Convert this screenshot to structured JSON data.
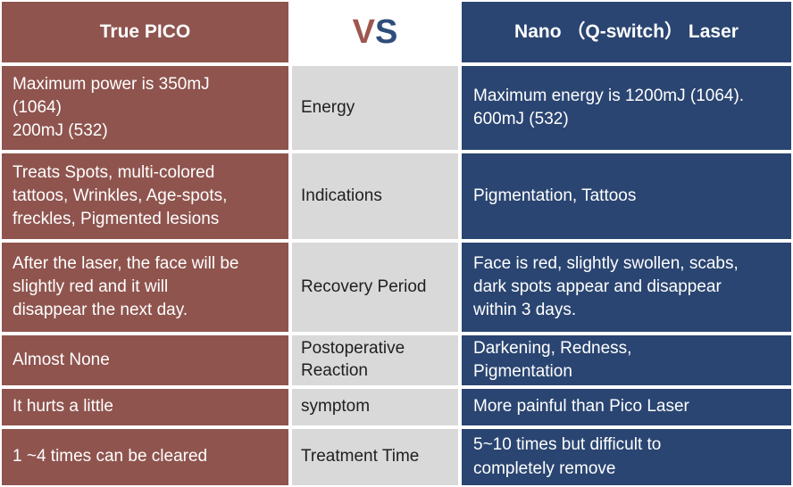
{
  "table": {
    "header": {
      "pico_title": "True PICO",
      "vs_v": "V",
      "vs_s": "S",
      "nano_title": "Nano （Q-switch） Laser"
    },
    "rows": [
      {
        "label": "Energy",
        "pico": "Maximum power is 350mJ\n(1064)\n200mJ (532)",
        "nano": "Maximum energy is 1200mJ (1064).\n600mJ (532)"
      },
      {
        "label": "Indications",
        "pico": "Treats Spots, multi-colored\ntattoos, Wrinkles,  Age-spots,\nfreckles, Pigmented lesions",
        "nano": "Pigmentation, Tattoos"
      },
      {
        "label": "Recovery Period",
        "pico": "After the laser, the face will be\nslightly red and it will\ndisappear the next day.",
        "nano": "Face is red, slightly swollen, scabs,\ndark spots appear and disappear\nwithin 3 days."
      },
      {
        "label": "Postoperative\nReaction",
        "pico": "Almost None",
        "nano": "Darkening, Redness,\nPigmentation"
      },
      {
        "label": "symptom",
        "pico": "It hurts a little",
        "nano": "More painful than Pico Laser"
      },
      {
        "label": "Treatment Time",
        "pico": "1 ~4 times can be cleared",
        "nano": "5~10 times but difficult to\ncompletely remove"
      }
    ],
    "colors": {
      "pico_column": "#8F544E",
      "label_column": "#D9D9D9",
      "nano_column": "#2A4571",
      "vs_v_color": "#9E564F",
      "vs_s_color": "#2E4D7B",
      "light_text": "#FFFFFF",
      "dark_text": "#1F1F1F"
    }
  }
}
